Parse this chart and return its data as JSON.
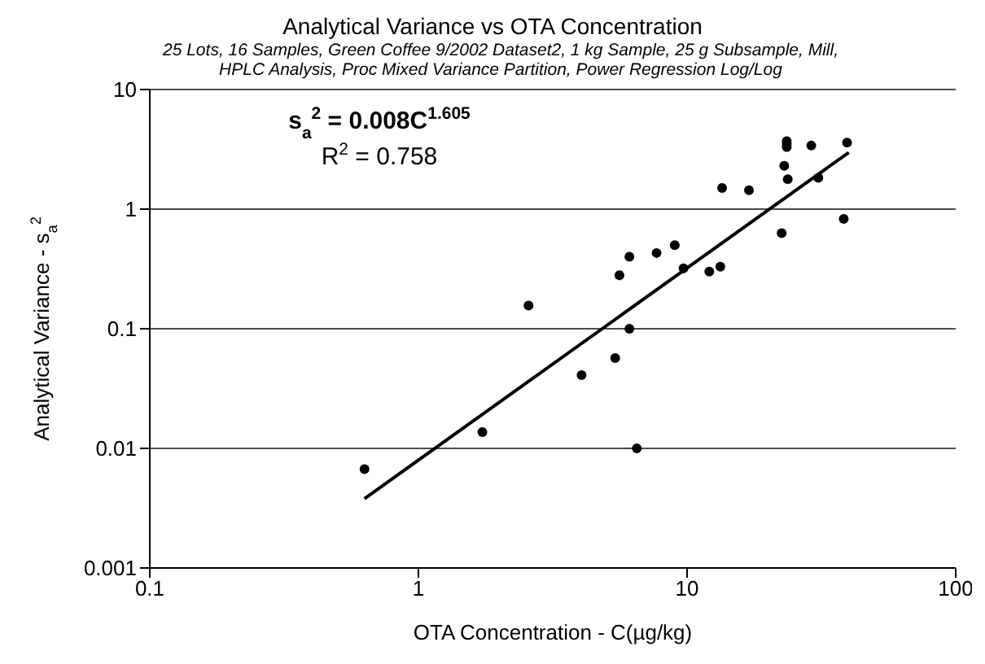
{
  "chart_data": {
    "type": "scatter",
    "title": "Analytical Variance vs  OTA Concentration",
    "subtitle": "25 Lots, 16 Samples, Green Coffee 9/2002 Dataset2, 1 kg Sample, 25 g Subsample, Mill, HPLC Analysis, Proc Mixed Variance Partition, Power Regression Log/Log",
    "xlabel": "OTA Concentration - C(µg/kg)",
    "ylabel": "Analytical Variance - s$_{a}$$^{2}$",
    "annotations": [
      "s$_{a}$$^{2}$ = 0.008C$^{1.605}$",
      "R$^{2}$ = 0.758"
    ],
    "series": [
      {
        "color": "#000000",
        "marker": "circle",
        "x": [
          0.63,
          1.73,
          2.57,
          4.05,
          5.4,
          5.6,
          6.1,
          6.1,
          6.5,
          7.7,
          9.0,
          9.7,
          12.1,
          13.3,
          13.5,
          17,
          22.5,
          23,
          23.7,
          23.5,
          23.5,
          23.5,
          29,
          30.8,
          38.3,
          39.4
        ],
        "values": [
          0.0067,
          0.0137,
          0.156,
          0.041,
          0.057,
          0.28,
          0.1,
          0.4,
          0.01,
          0.43,
          0.5,
          0.32,
          0.3,
          0.33,
          1.5,
          1.44,
          0.63,
          2.3,
          1.78,
          3.7,
          3.5,
          3.3,
          3.4,
          1.83,
          0.83,
          3.6
        ]
      },
      {
        "type": "line",
        "color": "#000000",
        "marker": "none",
        "x": [
          0.63,
          40
        ],
        "values": [
          0.0038,
          2.98
        ]
      }
    ],
    "xlim": [
      0.1,
      100
    ],
    "xticks": [
      0.1,
      1,
      10,
      100
    ],
    "ylim": [
      0.001,
      10
    ],
    "yticks": [
      0.001,
      0.01,
      0.1,
      1,
      10
    ],
    "log": "xy",
    "grid": "y"
  }
}
